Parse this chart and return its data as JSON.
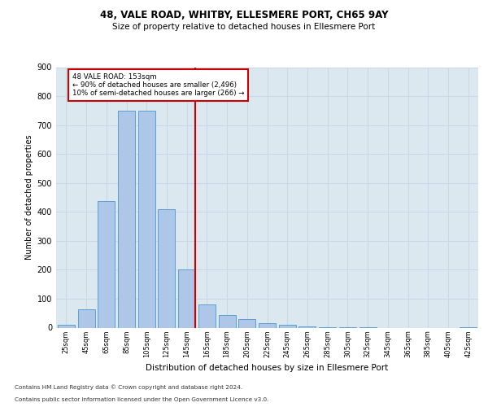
{
  "title1": "48, VALE ROAD, WHITBY, ELLESMERE PORT, CH65 9AY",
  "title2": "Size of property relative to detached houses in Ellesmere Port",
  "xlabel": "Distribution of detached houses by size in Ellesmere Port",
  "ylabel": "Number of detached properties",
  "categories": [
    "25sqm",
    "45sqm",
    "65sqm",
    "85sqm",
    "105sqm",
    "125sqm",
    "145sqm",
    "165sqm",
    "185sqm",
    "205sqm",
    "225sqm",
    "245sqm",
    "265sqm",
    "285sqm",
    "305sqm",
    "325sqm",
    "345sqm",
    "365sqm",
    "385sqm",
    "405sqm",
    "425sqm"
  ],
  "values": [
    10,
    63,
    437,
    750,
    750,
    410,
    200,
    80,
    45,
    30,
    15,
    10,
    5,
    2,
    1,
    1,
    0,
    0,
    0,
    0,
    2
  ],
  "bar_color": "#aec6e8",
  "bar_edge_color": "#5a9fd4",
  "property_size": 153,
  "property_label": "48 VALE ROAD: 153sqm",
  "annotation_line1": "← 90% of detached houses are smaller (2,496)",
  "annotation_line2": "10% of semi-detached houses are larger (266) →",
  "redline_color": "#cc0000",
  "annotation_box_color": "#ffffff",
  "annotation_box_edge": "#cc0000",
  "ylim": [
    0,
    900
  ],
  "yticks": [
    0,
    100,
    200,
    300,
    400,
    500,
    600,
    700,
    800,
    900
  ],
  "grid_color": "#c8d8e8",
  "bg_color": "#dce8f0",
  "footnote1": "Contains HM Land Registry data © Crown copyright and database right 2024.",
  "footnote2": "Contains public sector information licensed under the Open Government Licence v3.0."
}
